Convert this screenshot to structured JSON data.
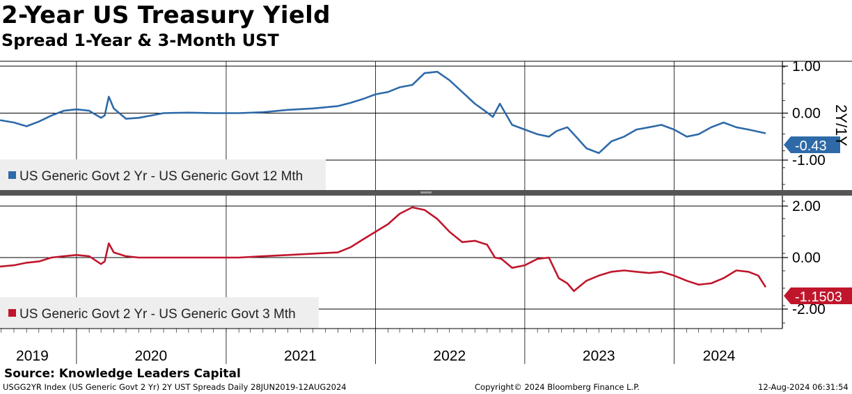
{
  "header": {
    "title": "2-Year US Treasury Yield",
    "subtitle": "Spread 1-Year & 3-Month UST"
  },
  "footer": {
    "source": "Source: Knowledge Leaders Capital",
    "left": "USGG2YR Index (US Generic Govt 2 Yr) 2Y UST Spreads  Daily 28JUN2019-12AUG2024",
    "center": "Copyright© 2024 Bloomberg Finance L.P.",
    "right": "12-Aug-2024 06:31:54"
  },
  "colors": {
    "series1": "#2e6aa8",
    "series2": "#c0162c"
  },
  "chart_data": [
    {
      "type": "line",
      "y_axis_title": "2Y/1Y",
      "ylim": [
        -1.0,
        1.0
      ],
      "y_ticks": [
        "1.00",
        "0.00",
        "-1.00"
      ],
      "x_ticks": [
        "2019",
        "2020",
        "2021",
        "2022",
        "2023",
        "2024"
      ],
      "xlim": [
        "2019-06-28",
        "2024-08-12"
      ],
      "legend": "bottom-left",
      "grid": true,
      "last_value_label": "-0.43",
      "series": [
        {
          "name": "US Generic Govt 2 Yr - US Generic Govt 12 Mth",
          "x": [
            "2019-06-28",
            "2019-08-01",
            "2019-09-01",
            "2019-10-01",
            "2019-11-01",
            "2019-12-01",
            "2020-01-01",
            "2020-02-01",
            "2020-03-01",
            "2020-03-10",
            "2020-03-20",
            "2020-04-01",
            "2020-05-01",
            "2020-06-01",
            "2020-08-01",
            "2020-10-01",
            "2020-12-01",
            "2021-02-01",
            "2021-04-01",
            "2021-06-01",
            "2021-08-01",
            "2021-10-01",
            "2021-11-01",
            "2021-12-01",
            "2022-01-01",
            "2022-02-01",
            "2022-03-01",
            "2022-04-01",
            "2022-05-01",
            "2022-06-01",
            "2022-07-01",
            "2022-08-01",
            "2022-09-01",
            "2022-09-25",
            "2022-10-15",
            "2022-11-01",
            "2022-12-01",
            "2023-01-01",
            "2023-02-01",
            "2023-03-01",
            "2023-03-20",
            "2023-04-15",
            "2023-05-01",
            "2023-06-01",
            "2023-07-01",
            "2023-08-01",
            "2023-09-01",
            "2023-10-01",
            "2023-11-01",
            "2023-12-01",
            "2024-01-01",
            "2024-02-01",
            "2024-03-01",
            "2024-04-01",
            "2024-05-01",
            "2024-06-01",
            "2024-07-01",
            "2024-08-12"
          ],
          "values": [
            -0.15,
            -0.2,
            -0.28,
            -0.18,
            -0.05,
            0.05,
            0.08,
            0.05,
            -0.1,
            -0.05,
            0.35,
            0.1,
            -0.12,
            -0.1,
            0.0,
            0.01,
            0.0,
            0.0,
            0.02,
            0.07,
            0.1,
            0.15,
            0.22,
            0.3,
            0.4,
            0.45,
            0.55,
            0.6,
            0.85,
            0.88,
            0.7,
            0.45,
            0.2,
            0.05,
            -0.08,
            0.2,
            -0.25,
            -0.35,
            -0.45,
            -0.5,
            -0.38,
            -0.3,
            -0.45,
            -0.75,
            -0.85,
            -0.6,
            -0.5,
            -0.35,
            -0.3,
            -0.25,
            -0.35,
            -0.5,
            -0.45,
            -0.3,
            -0.2,
            -0.3,
            -0.35,
            -0.43
          ]
        }
      ]
    },
    {
      "type": "line",
      "ylim": [
        -2.0,
        2.0
      ],
      "y_ticks": [
        "2.00",
        "0.00",
        "-2.00"
      ],
      "x_ticks": [
        "2019",
        "2020",
        "2021",
        "2022",
        "2023",
        "2024"
      ],
      "xlim": [
        "2019-06-28",
        "2024-08-12"
      ],
      "legend": "bottom-left",
      "grid": true,
      "last_value_label": "-1.1503",
      "series": [
        {
          "name": "US Generic Govt 2 Yr - US Generic Govt 3 Mth",
          "x": [
            "2019-06-28",
            "2019-08-01",
            "2019-09-01",
            "2019-10-01",
            "2019-11-01",
            "2019-12-01",
            "2020-01-01",
            "2020-02-01",
            "2020-03-01",
            "2020-03-10",
            "2020-03-20",
            "2020-04-01",
            "2020-05-01",
            "2020-06-01",
            "2020-08-01",
            "2020-10-01",
            "2020-12-01",
            "2021-02-01",
            "2021-04-01",
            "2021-06-01",
            "2021-08-01",
            "2021-10-01",
            "2021-11-01",
            "2021-12-01",
            "2022-01-01",
            "2022-02-01",
            "2022-03-01",
            "2022-04-01",
            "2022-05-01",
            "2022-06-01",
            "2022-07-01",
            "2022-08-01",
            "2022-09-01",
            "2022-10-01",
            "2022-10-20",
            "2022-11-05",
            "2022-12-01",
            "2023-01-01",
            "2023-02-01",
            "2023-03-01",
            "2023-03-25",
            "2023-04-15",
            "2023-05-01",
            "2023-06-01",
            "2023-07-01",
            "2023-08-01",
            "2023-09-01",
            "2023-10-01",
            "2023-11-01",
            "2023-12-01",
            "2024-01-01",
            "2024-02-01",
            "2024-03-01",
            "2024-04-01",
            "2024-05-01",
            "2024-06-01",
            "2024-07-01",
            "2024-07-25",
            "2024-08-12"
          ],
          "values": [
            -0.35,
            -0.3,
            -0.2,
            -0.15,
            0.0,
            0.05,
            0.1,
            0.05,
            -0.25,
            -0.15,
            0.55,
            0.2,
            0.05,
            0.0,
            0.0,
            0.0,
            0.0,
            0.0,
            0.05,
            0.1,
            0.15,
            0.2,
            0.4,
            0.7,
            1.0,
            1.3,
            1.7,
            1.95,
            1.85,
            1.5,
            1.0,
            0.6,
            0.65,
            0.5,
            0.0,
            -0.05,
            -0.4,
            -0.3,
            -0.05,
            0.0,
            -0.8,
            -1.0,
            -1.3,
            -0.9,
            -0.7,
            -0.55,
            -0.5,
            -0.55,
            -0.6,
            -0.55,
            -0.7,
            -0.9,
            -1.05,
            -1.0,
            -0.8,
            -0.5,
            -0.55,
            -0.7,
            -1.15
          ]
        }
      ]
    }
  ]
}
